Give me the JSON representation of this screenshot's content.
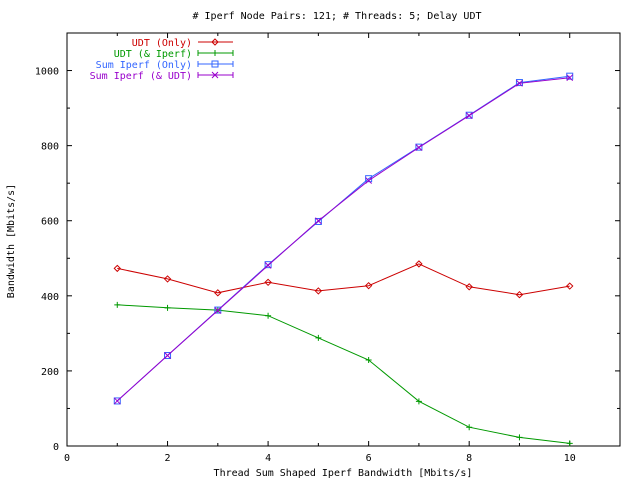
{
  "chart_data": {
    "type": "line",
    "title": "# Iperf Node Pairs: 121; # Threads: 5; Delay UDT",
    "xlabel": "Thread Sum Shaped Iperf Bandwidth [Mbits/s]",
    "ylabel": "Bandwidth [Mbits/s]",
    "xlim": [
      0,
      11
    ],
    "ylim": [
      0,
      1100
    ],
    "xticks": [
      "0",
      "2",
      "4",
      "6",
      "8",
      "10"
    ],
    "yticks": [
      "0",
      "200",
      "400",
      "600",
      "800",
      "1000"
    ],
    "grid": false,
    "legend_position": "top-left",
    "x": [
      1,
      2,
      3,
      4,
      5,
      6,
      7,
      8,
      9,
      10
    ],
    "series": [
      {
        "name": "UDT (Only)",
        "color": "#cc0000",
        "marker": "diamond",
        "values": [
          473,
          445,
          408,
          436,
          413,
          427,
          485,
          424,
          403,
          426
        ]
      },
      {
        "name": "UDT (& Iperf)",
        "color": "#009900",
        "marker": "plus",
        "values": [
          376,
          368,
          362,
          347,
          288,
          229,
          119,
          50,
          23,
          7
        ]
      },
      {
        "name": "Sum Iperf (Only)",
        "color": "#3366ff",
        "marker": "box",
        "values": [
          120,
          241,
          362,
          483,
          598,
          712,
          796,
          881,
          968,
          985
        ]
      },
      {
        "name": "Sum Iperf (& UDT)",
        "color": "#9900cc",
        "marker": "x",
        "values": [
          120,
          241,
          361,
          481,
          600,
          707,
          795,
          880,
          966,
          981
        ]
      }
    ]
  }
}
